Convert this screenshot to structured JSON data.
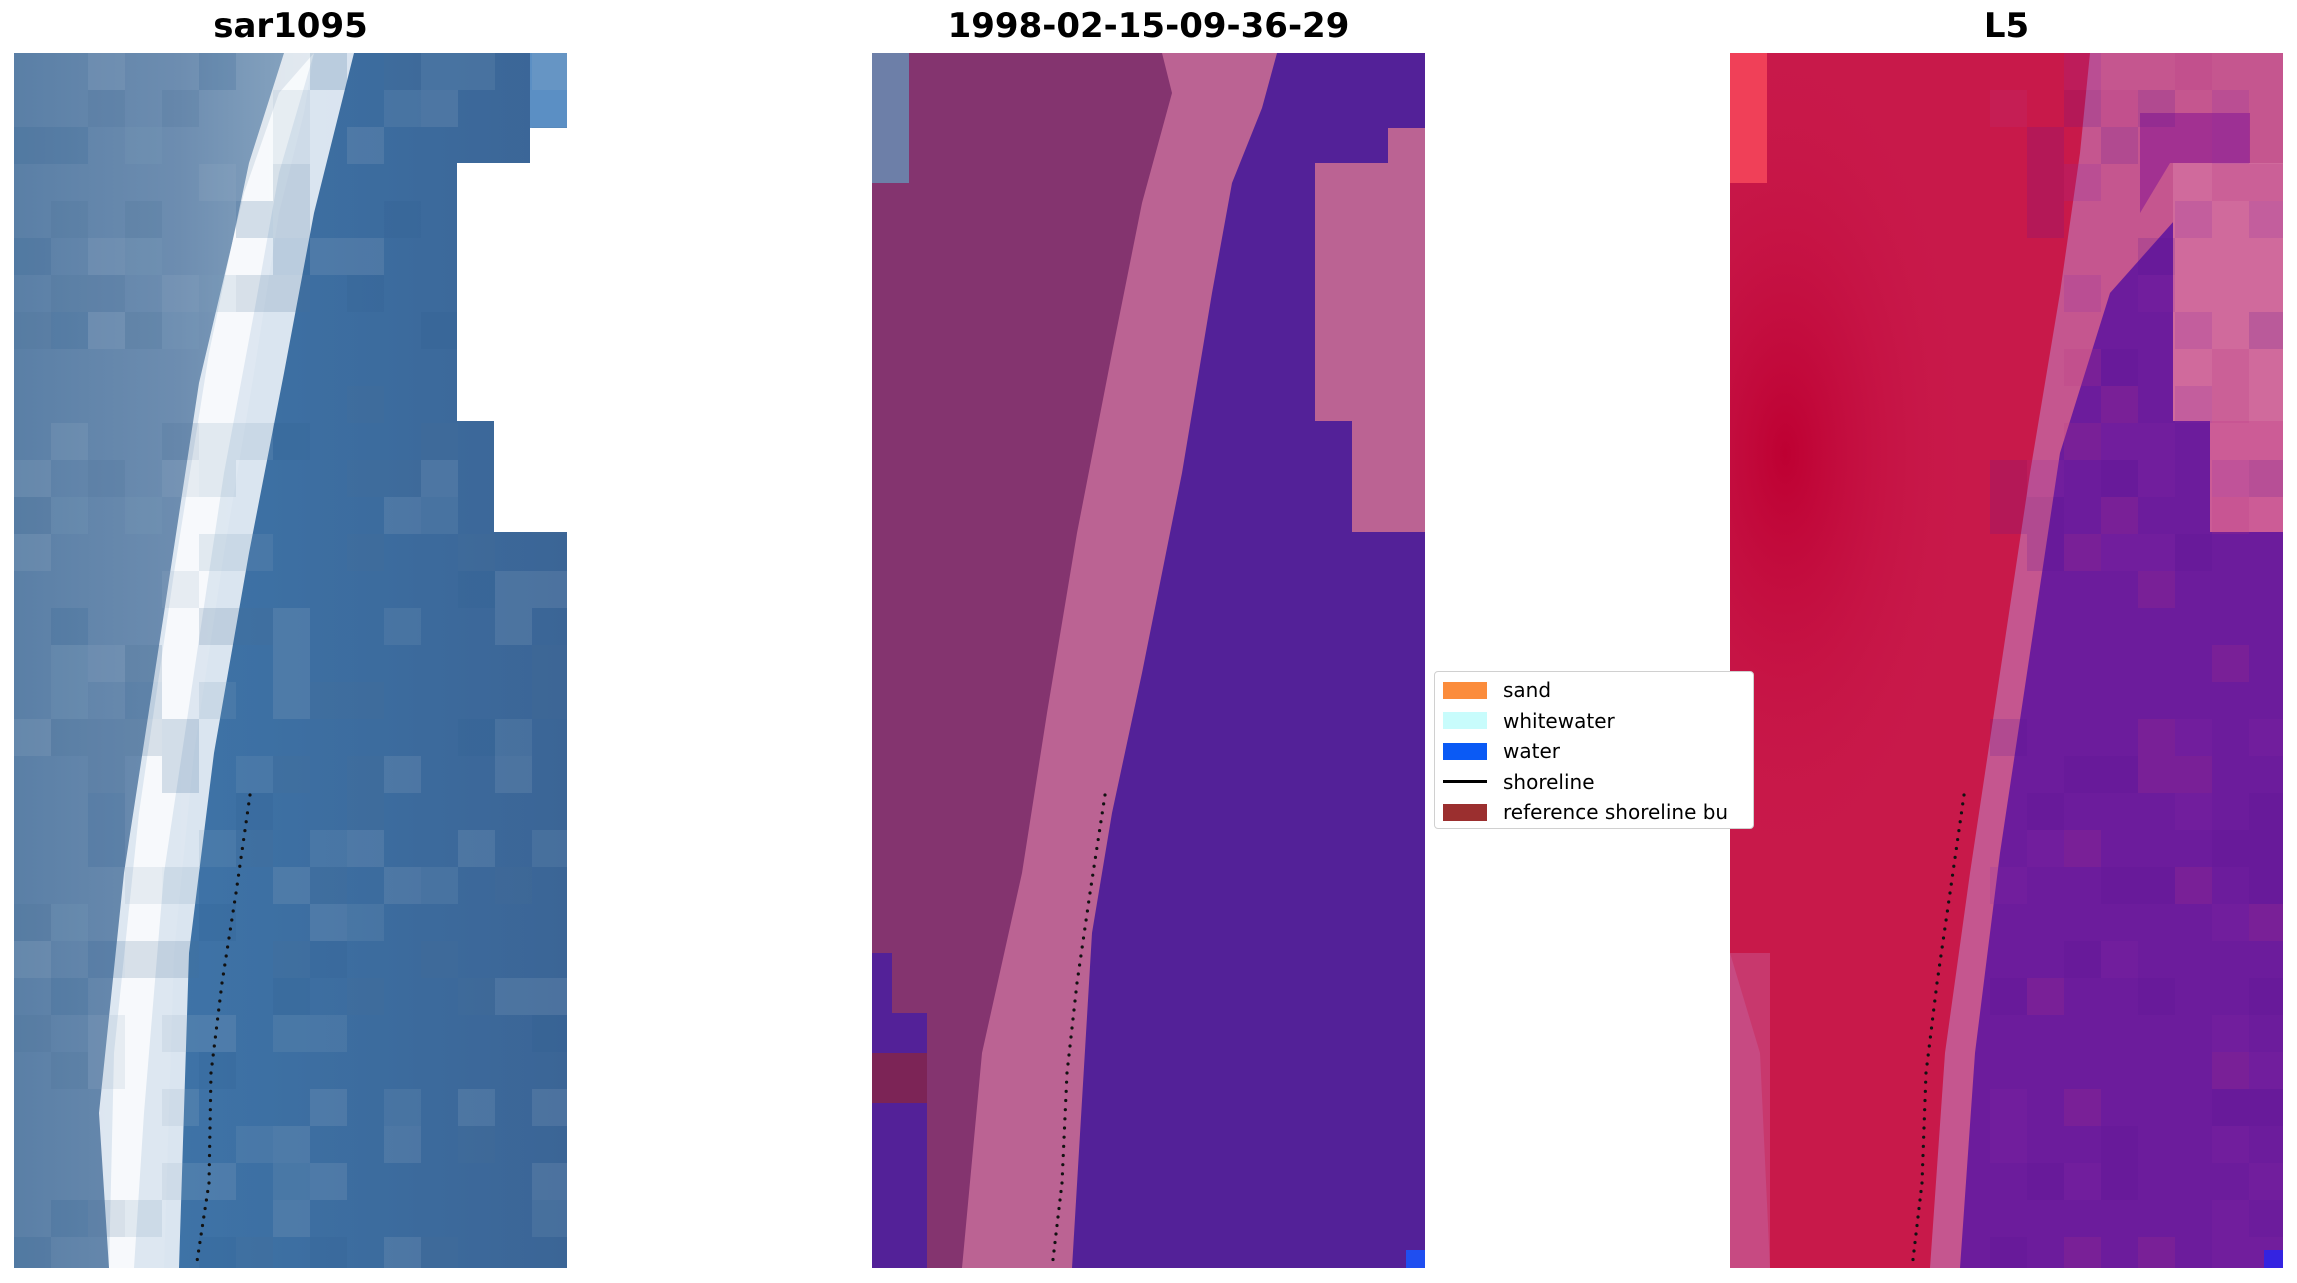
{
  "panels": [
    {
      "id": "rgb",
      "title": "sar1095"
    },
    {
      "id": "classified",
      "title": "1998-02-15-09-36-29"
    },
    {
      "id": "index",
      "title": "L5"
    }
  ],
  "legend": {
    "items": [
      {
        "label": "sand",
        "kind": "patch",
        "color": "#fb8c3c"
      },
      {
        "label": "whitewater",
        "kind": "patch",
        "color": "#c8fcfc"
      },
      {
        "label": "water",
        "kind": "patch",
        "color": "#0a5af5"
      },
      {
        "label": "shoreline",
        "kind": "line",
        "color": "#000000"
      },
      {
        "label": "reference shoreline bu",
        "kind": "patch",
        "color": "#9b2f2f"
      }
    ]
  },
  "colors": {
    "rgb_land": "#5b86a8",
    "rgb_foam": "#eef4f8",
    "rgb_water": "#3d6fa0",
    "class_land": "#7c2e6a",
    "class_sand": "#bb6393",
    "class_water": "#532198",
    "index_land": "#c8194a",
    "index_mid": "#c5568f",
    "index_water": "#6c1c9c"
  }
}
